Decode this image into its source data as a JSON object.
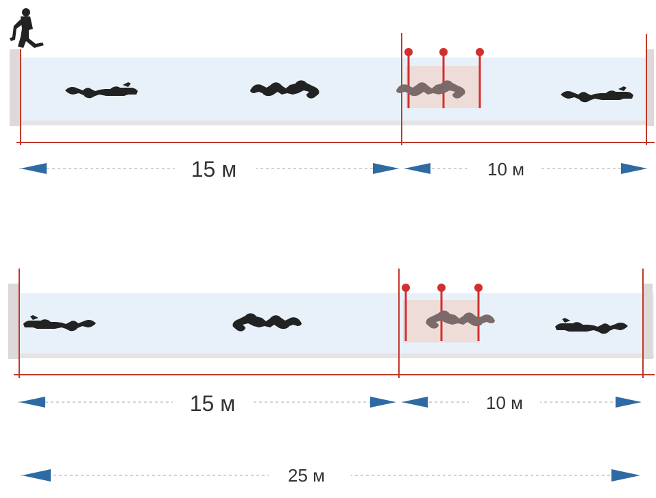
{
  "colors": {
    "water": "#e8f1f9",
    "pool_edge": "#ded9d9",
    "pool_bottom": "#e6e3e3",
    "red_line": "#c0392b",
    "marker": "#d32f2f",
    "zone_fill": "#eed8d4",
    "arrow": "#2e6aa3",
    "dash": "#c4c4c4",
    "diver": "#222222",
    "diver_fading": "#7a6a6a",
    "label": "#333333"
  },
  "diagrams": [
    {
      "segments": [
        {
          "label": "15 м"
        },
        {
          "label": "10 м"
        }
      ],
      "divers": [
        {
          "icon": "swimming-diver-icon",
          "direction": "right"
        },
        {
          "icon": "swimming-diver-icon",
          "direction": "right"
        },
        {
          "icon": "swimming-diver-icon",
          "direction": "right",
          "fading": true
        },
        {
          "icon": "swimming-diver-icon",
          "direction": "right"
        }
      ],
      "markers": 3,
      "start_icon": "standing-diver-icon"
    },
    {
      "segments": [
        {
          "label": "15 м"
        },
        {
          "label": "10 м"
        }
      ],
      "divers": [
        {
          "icon": "swimming-diver-icon",
          "direction": "left"
        },
        {
          "icon": "swimming-diver-icon",
          "direction": "left"
        },
        {
          "icon": "swimming-diver-icon",
          "direction": "left",
          "fading": true
        },
        {
          "icon": "swimming-diver-icon",
          "direction": "left"
        }
      ],
      "markers": 3
    }
  ],
  "total": {
    "label": "25 м"
  }
}
